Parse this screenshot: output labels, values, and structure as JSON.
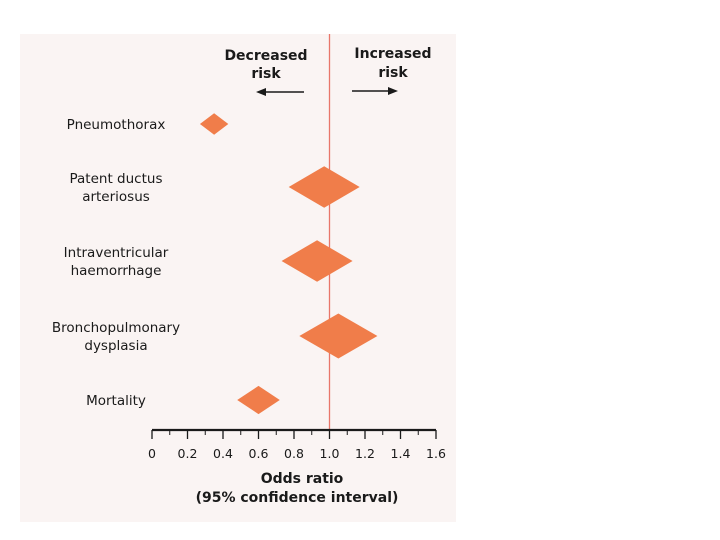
{
  "chart_data": {
    "type": "forest",
    "title": "",
    "direction_labels": {
      "left": [
        "Decreased",
        "risk"
      ],
      "right": [
        "Increased",
        "risk"
      ]
    },
    "reference_line": 1.0,
    "xlabel": [
      "Odds ratio",
      "(95% confidence interval)"
    ],
    "xlim": [
      0,
      1.6
    ],
    "xticks": [
      0,
      0.2,
      0.4,
      0.6,
      0.8,
      1.0,
      1.2,
      1.4,
      1.6
    ],
    "xtick_labels": [
      "0",
      "0.2",
      "0.4",
      "0.6",
      "0.8",
      "1.0",
      "1.2",
      "1.4",
      "1.6"
    ],
    "rows": [
      {
        "label": [
          "Pneumothorax"
        ],
        "or": 0.35,
        "ci_low": 0.27,
        "ci_high": 0.43
      },
      {
        "label": [
          "Patent ductus",
          "arteriosus"
        ],
        "or": 0.97,
        "ci_low": 0.77,
        "ci_high": 1.17
      },
      {
        "label": [
          "Intraventricular",
          "haemorrhage"
        ],
        "or": 0.93,
        "ci_low": 0.73,
        "ci_high": 1.13
      },
      {
        "label": [
          "Bronchopulmonary",
          "dysplasia"
        ],
        "or": 1.05,
        "ci_low": 0.83,
        "ci_high": 1.27
      },
      {
        "label": [
          "Mortality"
        ],
        "or": 0.6,
        "ci_low": 0.48,
        "ci_high": 0.72
      }
    ],
    "marker_color": "#f07d4a",
    "reference_color": "#e8766a",
    "axis_color": "#1a1a1a"
  }
}
